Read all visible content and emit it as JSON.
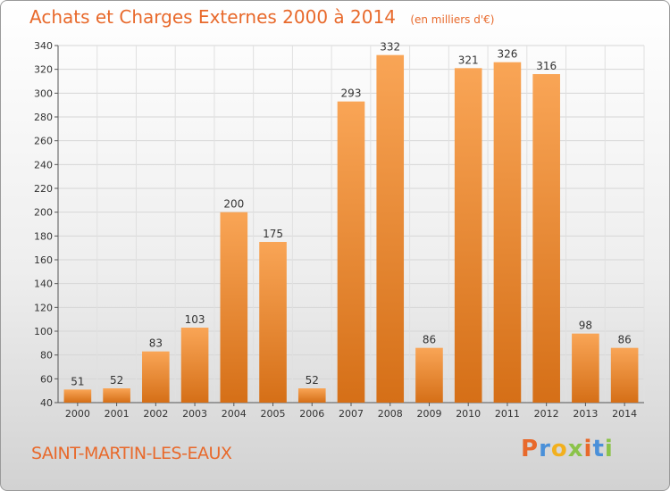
{
  "chart_data": {
    "type": "bar",
    "title": "Achats et Charges Externes 2000 à 2014",
    "subtitle": "(en milliers d'€)",
    "categories": [
      "2000",
      "2001",
      "2002",
      "2003",
      "2004",
      "2005",
      "2006",
      "2007",
      "2008",
      "2009",
      "2010",
      "2011",
      "2012",
      "2013",
      "2014"
    ],
    "values": [
      51,
      52,
      83,
      103,
      200,
      175,
      52,
      293,
      332,
      86,
      321,
      326,
      316,
      98,
      86
    ],
    "ylim": [
      40,
      340
    ],
    "yticks": [
      40,
      60,
      80,
      100,
      120,
      140,
      160,
      180,
      200,
      220,
      240,
      260,
      280,
      300,
      320,
      340
    ],
    "grid": true,
    "legend": "none",
    "colors": {
      "bar_top": "#f9a556",
      "bar_bottom": "#d56f17",
      "text": "#e8692b"
    }
  },
  "footer": {
    "commune": "SAINT-MARTIN-LES-EAUX"
  },
  "logo": {
    "text": "Proxiti",
    "letter_colors": [
      "#e8692b",
      "#4a90d9",
      "#f2b01e",
      "#8bc34a",
      "#e8692b",
      "#4a90d9",
      "#8bc34a"
    ]
  }
}
